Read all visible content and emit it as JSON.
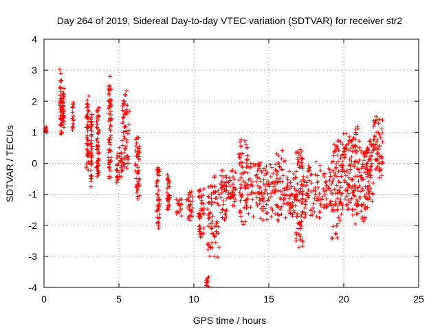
{
  "chart_data": {
    "type": "scatter",
    "title": "Day 264 of 2019, Sidereal Day-to-day VTEC variation (SDTVAR) for receiver str2",
    "xlabel": "GPS time / hours",
    "ylabel": "SDTVAR / TECUs",
    "xlim": [
      0,
      25
    ],
    "ylim": [
      -4,
      4
    ],
    "x_ticks": [
      0,
      5,
      10,
      15,
      20,
      25
    ],
    "y_ticks": [
      -4,
      -3,
      -2,
      -1,
      0,
      1,
      2,
      3,
      4
    ],
    "grid": true,
    "marker": "+",
    "color": "#ff0000",
    "series": [
      {
        "name": "SDTVAR",
        "segments": [
          {
            "x": [
              0.05,
              0.2
            ],
            "y": [
              1.2,
              0.95
            ]
          },
          {
            "x": [
              1.05,
              1.2
            ],
            "y": [
              3.1,
              0.85
            ]
          },
          {
            "x": [
              1.25,
              1.35
            ],
            "y": [
              2.6,
              1.0
            ]
          },
          {
            "x": [
              1.9,
              1.95
            ],
            "y": [
              2.0,
              1.0
            ]
          },
          {
            "x": [
              2.8,
              3.0
            ],
            "y": [
              2.3,
              -0.3
            ]
          },
          {
            "x": [
              3.1,
              3.2
            ],
            "y": [
              1.6,
              -0.8
            ]
          },
          {
            "x": [
              3.5,
              3.7
            ],
            "y": [
              2.1,
              -0.6
            ]
          },
          {
            "x": [
              4.3,
              4.5
            ],
            "y": [
              2.9,
              -0.6
            ]
          },
          {
            "x": [
              4.8,
              5.2
            ],
            "y": [
              0.6,
              -0.7
            ]
          },
          {
            "x": [
              5.2,
              5.7
            ],
            "y": [
              2.4,
              -0.4
            ]
          },
          {
            "x": [
              6.1,
              6.4
            ],
            "y": [
              1.1,
              -1.2
            ]
          },
          {
            "x": [
              7.5,
              7.7
            ],
            "y": [
              0.1,
              -2.2
            ]
          },
          {
            "x": [
              8.2,
              8.4
            ],
            "y": [
              -0.2,
              -1.6
            ]
          },
          {
            "x": [
              8.8,
              9.2
            ],
            "y": [
              -1.1,
              -1.7
            ]
          },
          {
            "x": [
              9.5,
              9.9
            ],
            "y": [
              -0.8,
              -2.0
            ]
          },
          {
            "x": [
              10.3,
              10.7
            ],
            "y": [
              -0.5,
              -2.5
            ]
          },
          {
            "x": [
              10.8,
              11.0
            ],
            "y": [
              -3.6,
              -4.0
            ]
          },
          {
            "x": [
              10.9,
              11.7
            ],
            "y": [
              -0.3,
              -3.3
            ]
          },
          {
            "x": [
              11.8,
              12.2
            ],
            "y": [
              -0.2,
              -2.0
            ]
          },
          {
            "x": [
              12.3,
              12.8
            ],
            "y": [
              -0.1,
              -1.5
            ]
          },
          {
            "x": [
              13.0,
              13.6
            ],
            "y": [
              0.9,
              -2.0
            ]
          },
          {
            "x": [
              13.6,
              14.5
            ],
            "y": [
              0.3,
              -1.8
            ]
          },
          {
            "x": [
              14.5,
              15.4
            ],
            "y": [
              0.0,
              -2.0
            ]
          },
          {
            "x": [
              15.4,
              16.2
            ],
            "y": [
              0.5,
              -2.0
            ]
          },
          {
            "x": [
              16.2,
              16.8
            ],
            "y": [
              -0.2,
              -1.9
            ]
          },
          {
            "x": [
              16.8,
              17.3
            ],
            "y": [
              0.7,
              -3.0
            ]
          },
          {
            "x": [
              17.3,
              18.4
            ],
            "y": [
              0.1,
              -1.9
            ]
          },
          {
            "x": [
              18.4,
              19.2
            ],
            "y": [
              0.0,
              -1.6
            ]
          },
          {
            "x": [
              19.2,
              19.9
            ],
            "y": [
              0.9,
              -2.5
            ]
          },
          {
            "x": [
              19.9,
              20.5
            ],
            "y": [
              1.2,
              -1.6
            ]
          },
          {
            "x": [
              20.5,
              21.0
            ],
            "y": [
              1.3,
              -2.0
            ]
          },
          {
            "x": [
              21.0,
              21.6
            ],
            "y": [
              0.8,
              -2.1
            ]
          },
          {
            "x": [
              21.6,
              22.0
            ],
            "y": [
              0.9,
              -1.3
            ]
          },
          {
            "x": [
              22.0,
              22.6
            ],
            "y": [
              1.6,
              0.2
            ]
          },
          {
            "x": [
              22.1,
              22.6
            ],
            "y": [
              0.4,
              -0.5
            ]
          }
        ]
      }
    ]
  }
}
